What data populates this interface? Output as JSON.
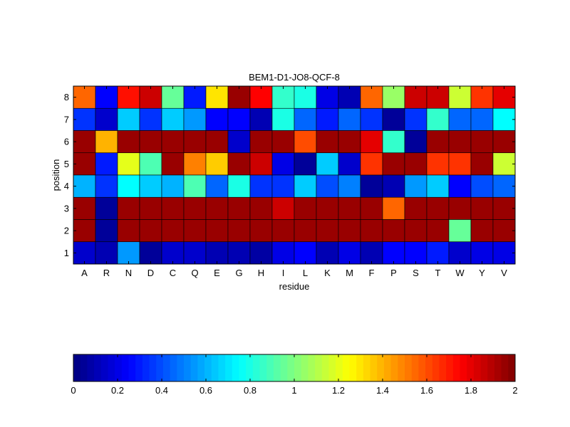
{
  "chart_data": {
    "type": "heatmap",
    "title": "BEM1-D1-JO8-QCF-8",
    "xlabel": "residue",
    "ylabel": "position",
    "x_categories": [
      "A",
      "R",
      "N",
      "D",
      "C",
      "Q",
      "E",
      "G",
      "H",
      "I",
      "L",
      "K",
      "M",
      "F",
      "P",
      "S",
      "T",
      "W",
      "Y",
      "V"
    ],
    "y_categories": [
      "8",
      "7",
      "6",
      "5",
      "4",
      "3",
      "2",
      "1"
    ],
    "values": [
      [
        1.55,
        0.25,
        1.72,
        1.85,
        0.95,
        0.3,
        1.3,
        1.95,
        1.75,
        0.85,
        0.8,
        0.2,
        0.1,
        1.55,
        1.05,
        1.85,
        1.85,
        1.15,
        1.65,
        1.8
      ],
      [
        0.35,
        0.15,
        0.65,
        0.35,
        0.65,
        0.55,
        0.25,
        0.25,
        0.1,
        0.8,
        0.45,
        0.3,
        0.45,
        0.35,
        0.05,
        0.35,
        0.85,
        0.45,
        0.45,
        0.75
      ],
      [
        1.95,
        1.4,
        1.95,
        1.95,
        1.95,
        1.95,
        1.95,
        0.15,
        1.95,
        1.95,
        1.6,
        1.95,
        1.95,
        1.8,
        0.85,
        0.05,
        1.95,
        1.95,
        1.95,
        1.95
      ],
      [
        1.95,
        0.3,
        1.2,
        0.9,
        1.95,
        1.5,
        1.35,
        1.95,
        1.85,
        0.2,
        0.05,
        0.65,
        0.15,
        1.65,
        1.95,
        1.95,
        1.65,
        1.65,
        1.95,
        1.15
      ],
      [
        0.6,
        0.35,
        0.75,
        0.65,
        0.6,
        0.9,
        0.45,
        0.8,
        0.35,
        0.35,
        0.65,
        0.4,
        0.5,
        0.05,
        0.1,
        0.55,
        0.65,
        0.25,
        0.4,
        0.45
      ],
      [
        1.95,
        0.05,
        1.95,
        1.95,
        1.95,
        1.95,
        1.95,
        1.95,
        1.95,
        1.85,
        1.95,
        1.95,
        1.95,
        1.95,
        1.55,
        1.95,
        1.95,
        1.95,
        1.95,
        1.95
      ],
      [
        1.95,
        0.05,
        1.95,
        1.95,
        1.95,
        1.95,
        1.95,
        1.95,
        1.95,
        1.95,
        1.95,
        1.95,
        1.95,
        1.95,
        1.95,
        1.95,
        1.95,
        0.95,
        1.95,
        1.95
      ],
      [
        0.15,
        0.1,
        0.55,
        0.05,
        0.15,
        0.15,
        0.1,
        0.1,
        0.07,
        0.2,
        0.25,
        0.1,
        0.2,
        0.1,
        0.25,
        0.25,
        0.3,
        0.15,
        0.2,
        0.2
      ]
    ],
    "zlim": [
      0,
      2
    ],
    "colormap": "jet",
    "colorbar": {
      "placement": "bottom",
      "ticks": [
        0,
        0.2,
        0.4,
        0.6,
        0.8,
        1,
        1.2,
        1.4,
        1.6,
        1.8,
        2
      ],
      "tick_labels": [
        "0",
        "0.2",
        "0.4",
        "0.6",
        "0.8",
        "1",
        "1.2",
        "1.4",
        "1.6",
        "1.8",
        "2"
      ]
    }
  }
}
